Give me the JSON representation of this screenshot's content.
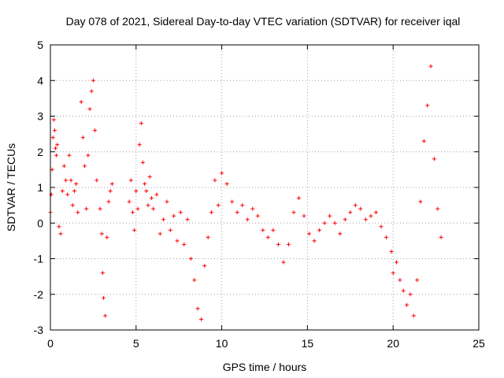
{
  "chart_data": {
    "type": "scatter",
    "title": "Day 078 of 2021, Sidereal Day-to-day VTEC variation (SDTVAR) for receiver iqal",
    "xlabel": "GPS time / hours",
    "ylabel": "SDTVAR / TECUs",
    "xlim": [
      0,
      25
    ],
    "ylim": [
      -3,
      5
    ],
    "xticks": [
      "0",
      "5",
      "10",
      "15",
      "20",
      "25"
    ],
    "yticks": [
      "-3",
      "-2",
      "-1",
      "0",
      "1",
      "2",
      "3",
      "4",
      "5"
    ],
    "grid": true,
    "marker": "+",
    "color": "#ff0000",
    "series": [
      {
        "name": "SDTVAR",
        "segments": [
          {
            "x": [
              0.0,
              0.05,
              0.1,
              0.15,
              0.2,
              0.25,
              0.3,
              0.35,
              0.4
            ],
            "y": [
              0.3,
              0.8,
              1.5,
              2.4,
              2.9,
              2.6,
              2.1,
              1.9,
              2.2
            ]
          },
          {
            "x": [
              0.5,
              0.6,
              0.7,
              0.8,
              0.9,
              1.0,
              1.1,
              1.2,
              1.3,
              1.4,
              1.5,
              1.6
            ],
            "y": [
              -0.1,
              -0.3,
              0.9,
              1.6,
              1.2,
              0.8,
              1.9,
              1.2,
              0.5,
              0.9,
              1.1,
              0.3
            ]
          },
          {
            "x": [
              1.8,
              1.9,
              2.0,
              2.1,
              2.2,
              2.3,
              2.4,
              2.5,
              2.6,
              2.7
            ],
            "y": [
              3.4,
              2.4,
              1.6,
              0.4,
              1.9,
              3.2,
              3.7,
              4.0,
              2.6,
              1.2
            ]
          },
          {
            "x": [
              2.9,
              3.0,
              3.05,
              3.1,
              3.2,
              3.3,
              3.4,
              3.5,
              3.6
            ],
            "y": [
              0.4,
              -0.3,
              -1.4,
              -2.1,
              -2.6,
              -0.4,
              0.6,
              0.9,
              1.1
            ]
          },
          {
            "x": [
              4.6,
              4.7,
              4.8,
              4.9,
              5.0,
              5.1,
              5.2,
              5.3,
              5.4,
              5.5,
              5.6,
              5.7,
              5.8,
              5.9
            ],
            "y": [
              0.6,
              1.2,
              0.3,
              -0.2,
              0.9,
              0.4,
              2.2,
              2.8,
              1.7,
              1.1,
              0.9,
              0.5,
              1.3,
              0.7
            ]
          },
          {
            "x": [
              6.0,
              6.2,
              6.4,
              6.6,
              6.8,
              7.0,
              7.2,
              7.4,
              7.6,
              7.8,
              8.0,
              8.2,
              8.4,
              8.6,
              8.8,
              9.0,
              9.2,
              9.4,
              9.6,
              9.8
            ],
            "y": [
              0.4,
              0.8,
              -0.3,
              0.1,
              0.6,
              -0.2,
              0.2,
              -0.5,
              0.3,
              -0.6,
              0.1,
              -1.0,
              -1.6,
              -2.4,
              -2.7,
              -1.2,
              -0.4,
              0.3,
              1.2,
              0.5
            ]
          },
          {
            "x": [
              10.0,
              10.3,
              10.6,
              10.9,
              11.2,
              11.5,
              11.8,
              12.1,
              12.4,
              12.7,
              13.0,
              13.3,
              13.6,
              13.9,
              14.2,
              14.5,
              14.8,
              15.1,
              15.4,
              15.7,
              16.0,
              16.3,
              16.6,
              16.9,
              17.2,
              17.5,
              17.8,
              18.1,
              18.4,
              18.7,
              19.0,
              19.3,
              19.6,
              19.9
            ],
            "y": [
              1.4,
              1.1,
              0.6,
              0.3,
              0.5,
              0.1,
              0.4,
              0.2,
              -0.2,
              -0.4,
              -0.2,
              -0.6,
              -1.1,
              -0.6,
              0.3,
              0.7,
              0.2,
              -0.3,
              -0.5,
              -0.2,
              0.0,
              0.2,
              0.0,
              -0.3,
              0.1,
              0.3,
              0.5,
              0.4,
              0.1,
              0.2,
              0.3,
              -0.1,
              -0.4,
              -0.8
            ]
          },
          {
            "x": [
              20.0,
              20.2,
              20.4,
              20.6,
              20.8,
              21.0,
              21.2,
              21.4,
              21.6,
              21.8,
              22.0,
              22.2,
              22.4,
              22.6,
              22.8
            ],
            "y": [
              -1.4,
              -1.1,
              -1.6,
              -1.9,
              -2.3,
              -2.0,
              -2.6,
              -1.6,
              0.6,
              2.3,
              3.3,
              4.4,
              1.8,
              0.4,
              -0.4
            ]
          }
        ]
      }
    ]
  }
}
